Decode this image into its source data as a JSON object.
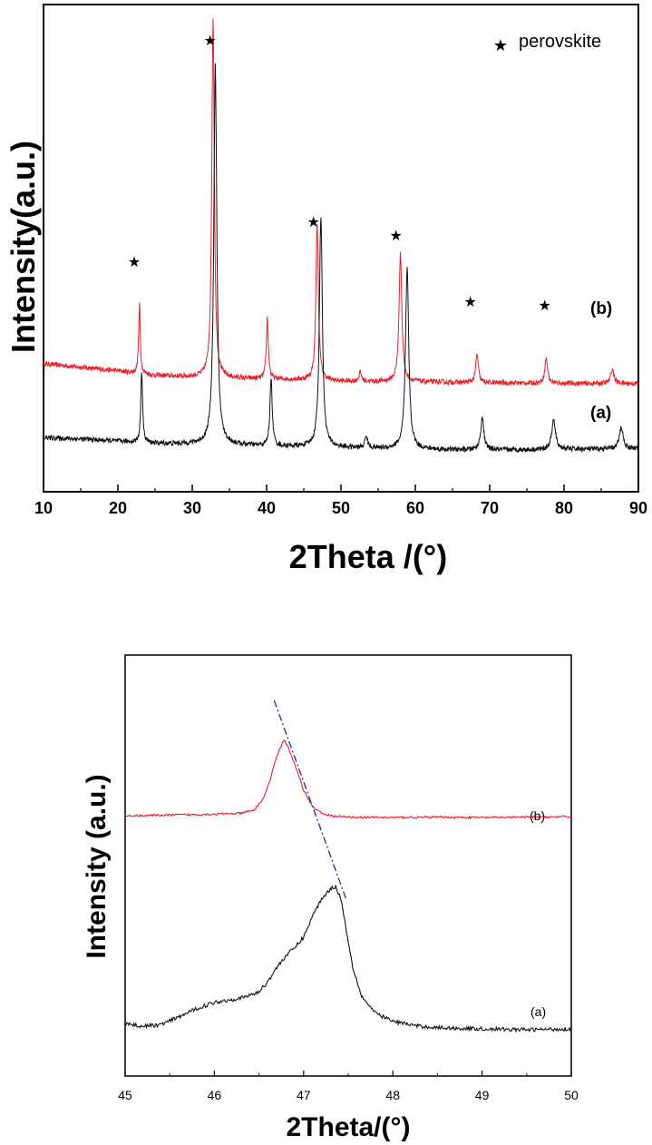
{
  "chart_data": [
    {
      "type": "line",
      "title": "",
      "xlabel": "2Theta /(°)",
      "ylabel": "Intensity(a.u.)",
      "xlim": [
        10,
        90
      ],
      "xticks": [
        "10",
        "20",
        "30",
        "40",
        "50",
        "60",
        "70",
        "80",
        "90"
      ],
      "legend": {
        "symbol": "★",
        "label": "perovskite",
        "placement": "top-right"
      },
      "annotations": [
        {
          "text": "(b)",
          "x": 87.5,
          "y": 340
        },
        {
          "text": "(a)",
          "x": 87.5,
          "y": 160
        }
      ],
      "marker_positions": [
        22.2,
        32.4,
        46.3,
        57.4,
        67.4,
        77.4
      ],
      "marker_symbol": "★",
      "series": [
        {
          "label": "(b)",
          "color": "#e8202a",
          "baseline": 300,
          "bg_points": [
            [
              10,
              355
            ],
            [
              15,
              345
            ],
            [
              20,
              335
            ],
            [
              25,
              322
            ],
            [
              30,
              318
            ],
            [
              35,
              314
            ],
            [
              40,
              312
            ],
            [
              45,
              310
            ],
            [
              50,
              306
            ],
            [
              55,
              305
            ],
            [
              60,
              305
            ],
            [
              65,
              303
            ],
            [
              70,
              302
            ],
            [
              75,
              301
            ],
            [
              80,
              300
            ],
            [
              85,
              300
            ],
            [
              90,
              300
            ]
          ],
          "peaks": [
            [
              22.9,
              190,
              0.13
            ],
            [
              32.8,
              1000,
              0.2
            ],
            [
              40.1,
              170,
              0.16
            ],
            [
              46.8,
              430,
              0.2
            ],
            [
              58.0,
              360,
              0.22
            ],
            [
              68.3,
              80,
              0.2
            ],
            [
              77.6,
              70,
              0.22
            ],
            [
              86.5,
              40,
              0.25
            ],
            [
              52.6,
              25,
              0.2
            ]
          ]
        },
        {
          "label": "(a)",
          "color": "#111111",
          "baseline": 160,
          "bg_points": [
            [
              10,
              150
            ],
            [
              15,
              146
            ],
            [
              20,
              140
            ],
            [
              25,
              134
            ],
            [
              30,
              132
            ],
            [
              35,
              130
            ],
            [
              40,
              126
            ],
            [
              45,
              124
            ],
            [
              50,
              122
            ],
            [
              55,
              120
            ],
            [
              60,
              118
            ],
            [
              65,
              116
            ],
            [
              70,
              116
            ],
            [
              75,
              116
            ],
            [
              80,
              118
            ],
            [
              85,
              118
            ],
            [
              90,
              120
            ]
          ],
          "peaks": [
            [
              23.2,
              200,
              0.14
            ],
            [
              33.1,
              1050,
              0.24
            ],
            [
              40.6,
              190,
              0.18
            ],
            [
              47.3,
              640,
              0.24
            ],
            [
              58.9,
              500,
              0.26
            ],
            [
              69.0,
              90,
              0.25
            ],
            [
              78.6,
              80,
              0.3
            ],
            [
              87.7,
              60,
              0.3
            ],
            [
              53.4,
              35,
              0.2
            ]
          ]
        }
      ]
    },
    {
      "type": "line",
      "title": "",
      "xlabel": "2Theta/(°)",
      "ylabel": "Intensity (a.u.)",
      "xlim": [
        45,
        50
      ],
      "xticks": [
        "45",
        "46",
        "47",
        "48",
        "49",
        "50"
      ],
      "annotations": [
        {
          "text": "(b)",
          "x": 46.9,
          "y": 0
        },
        {
          "text": "(a)",
          "x": 49.0,
          "y": 0
        }
      ],
      "guide_line": {
        "x": [
          46.67,
          47.48
        ],
        "color": "#1a2bb5",
        "style": "dash-dot"
      },
      "series": [
        {
          "label": "(b)",
          "color": "#e8202a",
          "points": [
            [
              45.0,
              618
            ],
            [
              45.5,
              620
            ],
            [
              46.0,
              622
            ],
            [
              46.3,
              624
            ],
            [
              46.45,
              632
            ],
            [
              46.55,
              660
            ],
            [
              46.62,
              700
            ],
            [
              46.7,
              760
            ],
            [
              46.78,
              800
            ],
            [
              46.83,
              780
            ],
            [
              46.9,
              740
            ],
            [
              47.0,
              680
            ],
            [
              47.1,
              640
            ],
            [
              47.2,
              625
            ],
            [
              47.3,
              618
            ],
            [
              47.5,
              615
            ],
            [
              48.0,
              614
            ],
            [
              48.5,
              615
            ],
            [
              49.0,
              614
            ],
            [
              49.5,
              615
            ],
            [
              50.0,
              616
            ]
          ]
        },
        {
          "label": "(a)",
          "color": "#111111",
          "points": [
            [
              45.0,
              125
            ],
            [
              45.2,
              118
            ],
            [
              45.4,
              122
            ],
            [
              45.6,
              140
            ],
            [
              45.8,
              160
            ],
            [
              46.0,
              175
            ],
            [
              46.2,
              182
            ],
            [
              46.35,
              188
            ],
            [
              46.5,
              200
            ],
            [
              46.6,
              225
            ],
            [
              46.7,
              258
            ],
            [
              46.8,
              285
            ],
            [
              46.9,
              305
            ],
            [
              47.0,
              330
            ],
            [
              47.1,
              380
            ],
            [
              47.2,
              420
            ],
            [
              47.3,
              445
            ],
            [
              47.36,
              450
            ],
            [
              47.42,
              420
            ],
            [
              47.48,
              345
            ],
            [
              47.55,
              260
            ],
            [
              47.65,
              190
            ],
            [
              47.8,
              150
            ],
            [
              48.0,
              130
            ],
            [
              48.3,
              118
            ],
            [
              48.6,
              114
            ],
            [
              49.0,
              112
            ],
            [
              49.5,
              110
            ],
            [
              50.0,
              112
            ]
          ]
        }
      ]
    }
  ]
}
